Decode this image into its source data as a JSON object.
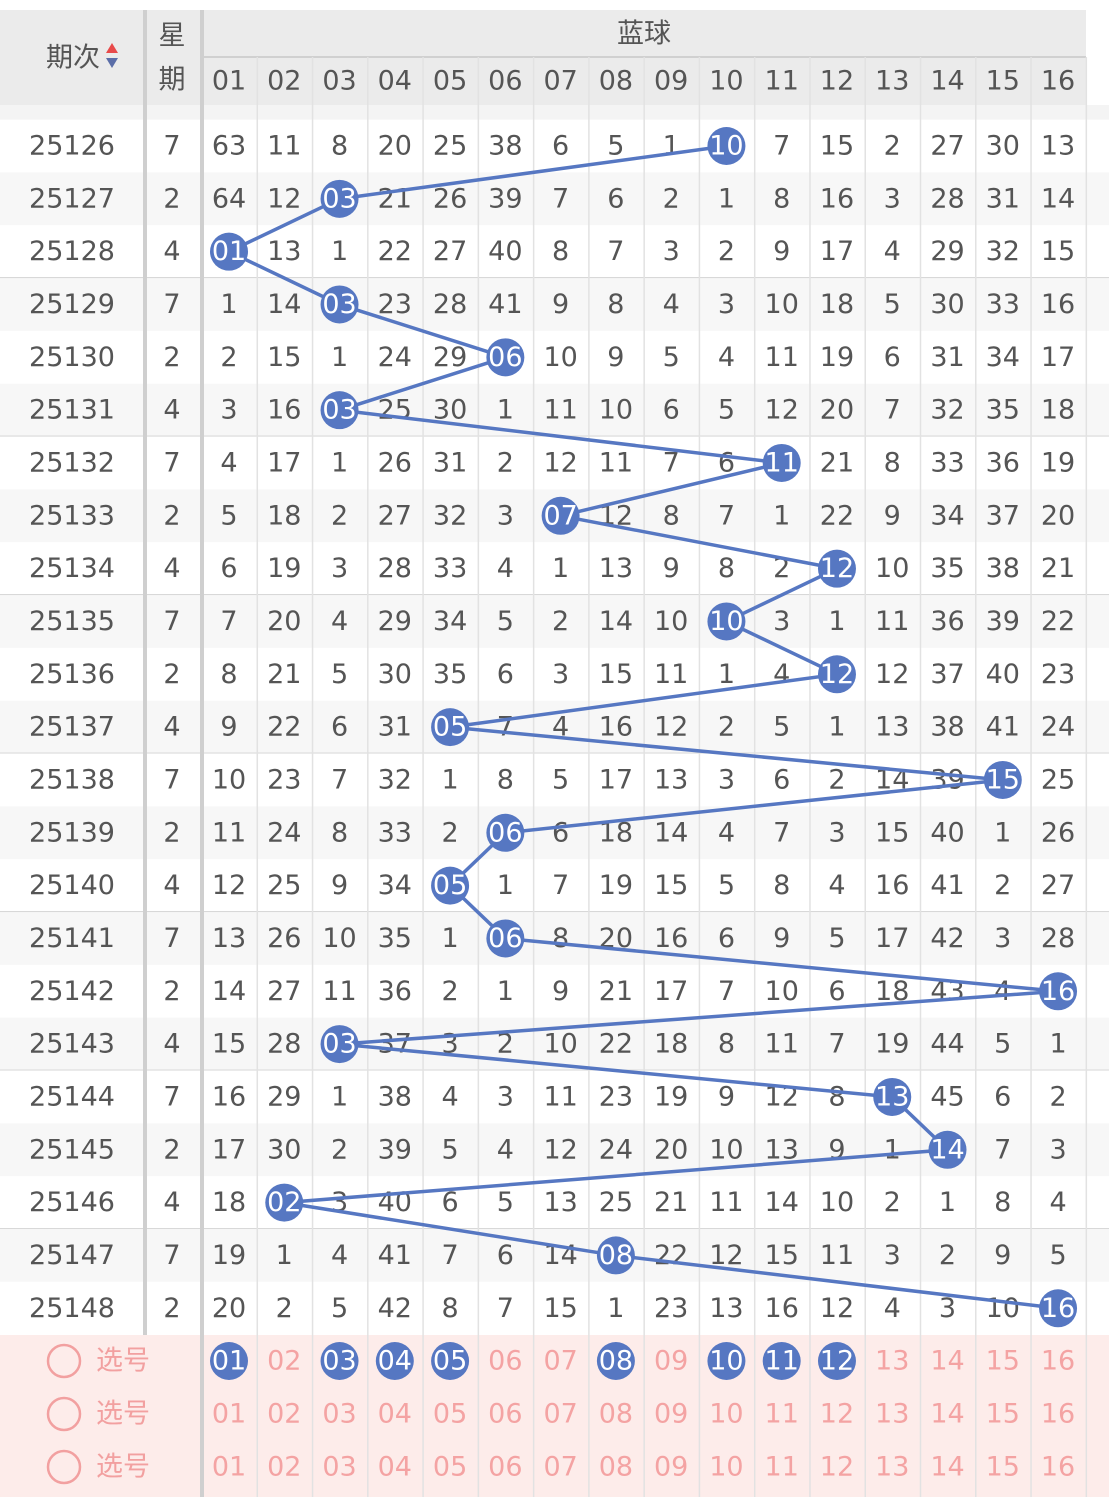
{
  "header": {
    "period": "期次",
    "weekday_top": "星",
    "weekday_bottom": "期",
    "blue": "蓝球",
    "columns": [
      "01",
      "02",
      "03",
      "04",
      "05",
      "06",
      "07",
      "08",
      "09",
      "10",
      "11",
      "12",
      "13",
      "14",
      "15",
      "16"
    ]
  },
  "rows": [
    {
      "period": "25126",
      "weekday": "7",
      "hit": 9,
      "cells": [
        "63",
        "11",
        "8",
        "20",
        "25",
        "38",
        "6",
        "5",
        "1",
        "10",
        "7",
        "15",
        "2",
        "27",
        "30",
        "13"
      ]
    },
    {
      "period": "25127",
      "weekday": "2",
      "hit": 2,
      "cells": [
        "64",
        "12",
        "03",
        "21",
        "26",
        "39",
        "7",
        "6",
        "2",
        "1",
        "8",
        "16",
        "3",
        "28",
        "31",
        "14"
      ]
    },
    {
      "period": "25128",
      "weekday": "4",
      "hit": 0,
      "cells": [
        "01",
        "13",
        "1",
        "22",
        "27",
        "40",
        "8",
        "7",
        "3",
        "2",
        "9",
        "17",
        "4",
        "29",
        "32",
        "15"
      ]
    },
    {
      "period": "25129",
      "weekday": "7",
      "hit": 2,
      "cells": [
        "1",
        "14",
        "03",
        "23",
        "28",
        "41",
        "9",
        "8",
        "4",
        "3",
        "10",
        "18",
        "5",
        "30",
        "33",
        "16"
      ]
    },
    {
      "period": "25130",
      "weekday": "2",
      "hit": 5,
      "cells": [
        "2",
        "15",
        "1",
        "24",
        "29",
        "06",
        "10",
        "9",
        "5",
        "4",
        "11",
        "19",
        "6",
        "31",
        "34",
        "17"
      ]
    },
    {
      "period": "25131",
      "weekday": "4",
      "hit": 2,
      "cells": [
        "3",
        "16",
        "03",
        "25",
        "30",
        "1",
        "11",
        "10",
        "6",
        "5",
        "12",
        "20",
        "7",
        "32",
        "35",
        "18"
      ]
    },
    {
      "period": "25132",
      "weekday": "7",
      "hit": 10,
      "cells": [
        "4",
        "17",
        "1",
        "26",
        "31",
        "2",
        "12",
        "11",
        "7",
        "6",
        "11",
        "21",
        "8",
        "33",
        "36",
        "19"
      ]
    },
    {
      "period": "25133",
      "weekday": "2",
      "hit": 6,
      "cells": [
        "5",
        "18",
        "2",
        "27",
        "32",
        "3",
        "07",
        "12",
        "8",
        "7",
        "1",
        "22",
        "9",
        "34",
        "37",
        "20"
      ]
    },
    {
      "period": "25134",
      "weekday": "4",
      "hit": 11,
      "cells": [
        "6",
        "19",
        "3",
        "28",
        "33",
        "4",
        "1",
        "13",
        "9",
        "8",
        "2",
        "12",
        "10",
        "35",
        "38",
        "21"
      ]
    },
    {
      "period": "25135",
      "weekday": "7",
      "hit": 9,
      "cells": [
        "7",
        "20",
        "4",
        "29",
        "34",
        "5",
        "2",
        "14",
        "10",
        "10",
        "3",
        "1",
        "11",
        "36",
        "39",
        "22"
      ]
    },
    {
      "period": "25136",
      "weekday": "2",
      "hit": 11,
      "cells": [
        "8",
        "21",
        "5",
        "30",
        "35",
        "6",
        "3",
        "15",
        "11",
        "1",
        "4",
        "12",
        "12",
        "37",
        "40",
        "23"
      ]
    },
    {
      "period": "25137",
      "weekday": "4",
      "hit": 4,
      "cells": [
        "9",
        "22",
        "6",
        "31",
        "05",
        "7",
        "4",
        "16",
        "12",
        "2",
        "5",
        "1",
        "13",
        "38",
        "41",
        "24"
      ]
    },
    {
      "period": "25138",
      "weekday": "7",
      "hit": 14,
      "cells": [
        "10",
        "23",
        "7",
        "32",
        "1",
        "8",
        "5",
        "17",
        "13",
        "3",
        "6",
        "2",
        "14",
        "39",
        "15",
        "25"
      ]
    },
    {
      "period": "25139",
      "weekday": "2",
      "hit": 5,
      "cells": [
        "11",
        "24",
        "8",
        "33",
        "2",
        "06",
        "6",
        "18",
        "14",
        "4",
        "7",
        "3",
        "15",
        "40",
        "1",
        "26"
      ]
    },
    {
      "period": "25140",
      "weekday": "4",
      "hit": 4,
      "cells": [
        "12",
        "25",
        "9",
        "34",
        "05",
        "1",
        "7",
        "19",
        "15",
        "5",
        "8",
        "4",
        "16",
        "41",
        "2",
        "27"
      ]
    },
    {
      "period": "25141",
      "weekday": "7",
      "hit": 5,
      "cells": [
        "13",
        "26",
        "10",
        "35",
        "1",
        "06",
        "8",
        "20",
        "16",
        "6",
        "9",
        "5",
        "17",
        "42",
        "3",
        "28"
      ]
    },
    {
      "period": "25142",
      "weekday": "2",
      "hit": 15,
      "cells": [
        "14",
        "27",
        "11",
        "36",
        "2",
        "1",
        "9",
        "21",
        "17",
        "7",
        "10",
        "6",
        "18",
        "43",
        "4",
        "16"
      ]
    },
    {
      "period": "25143",
      "weekday": "4",
      "hit": 2,
      "cells": [
        "15",
        "28",
        "03",
        "37",
        "3",
        "2",
        "10",
        "22",
        "18",
        "8",
        "11",
        "7",
        "19",
        "44",
        "5",
        "1"
      ]
    },
    {
      "period": "25144",
      "weekday": "7",
      "hit": 12,
      "cells": [
        "16",
        "29",
        "1",
        "38",
        "4",
        "3",
        "11",
        "23",
        "19",
        "9",
        "12",
        "8",
        "13",
        "45",
        "6",
        "2"
      ]
    },
    {
      "period": "25145",
      "weekday": "2",
      "hit": 13,
      "cells": [
        "17",
        "30",
        "2",
        "39",
        "5",
        "4",
        "12",
        "24",
        "20",
        "10",
        "13",
        "9",
        "1",
        "14",
        "7",
        "3"
      ]
    },
    {
      "period": "25146",
      "weekday": "4",
      "hit": 1,
      "cells": [
        "18",
        "02",
        "3",
        "40",
        "6",
        "5",
        "13",
        "25",
        "21",
        "11",
        "14",
        "10",
        "2",
        "1",
        "8",
        "4"
      ]
    },
    {
      "period": "25147",
      "weekday": "7",
      "hit": 7,
      "cells": [
        "19",
        "1",
        "4",
        "41",
        "7",
        "6",
        "14",
        "08",
        "22",
        "12",
        "15",
        "11",
        "3",
        "2",
        "9",
        "5"
      ]
    },
    {
      "period": "25148",
      "weekday": "2",
      "hit": 15,
      "cells": [
        "20",
        "2",
        "5",
        "42",
        "8",
        "7",
        "15",
        "1",
        "23",
        "13",
        "16",
        "12",
        "4",
        "3",
        "10",
        "16"
      ]
    }
  ],
  "selections": [
    {
      "label": "选号",
      "numbers": [
        "01",
        "02",
        "03",
        "04",
        "05",
        "06",
        "07",
        "08",
        "09",
        "10",
        "11",
        "12",
        "13",
        "14",
        "15",
        "16"
      ],
      "selected": [
        true,
        false,
        true,
        true,
        true,
        false,
        false,
        true,
        false,
        true,
        true,
        true,
        false,
        false,
        false,
        false
      ]
    },
    {
      "label": "选号",
      "numbers": [
        "01",
        "02",
        "03",
        "04",
        "05",
        "06",
        "07",
        "08",
        "09",
        "10",
        "11",
        "12",
        "13",
        "14",
        "15",
        "16"
      ],
      "selected": [
        false,
        false,
        false,
        false,
        false,
        false,
        false,
        false,
        false,
        false,
        false,
        false,
        false,
        false,
        false,
        false
      ]
    },
    {
      "label": "选号",
      "numbers": [
        "01",
        "02",
        "03",
        "04",
        "05",
        "06",
        "07",
        "08",
        "09",
        "10",
        "11",
        "12",
        "13",
        "14",
        "15",
        "16"
      ],
      "selected": [
        false,
        false,
        false,
        false,
        false,
        false,
        false,
        false,
        false,
        false,
        false,
        false,
        false,
        false,
        false,
        false
      ]
    }
  ]
}
